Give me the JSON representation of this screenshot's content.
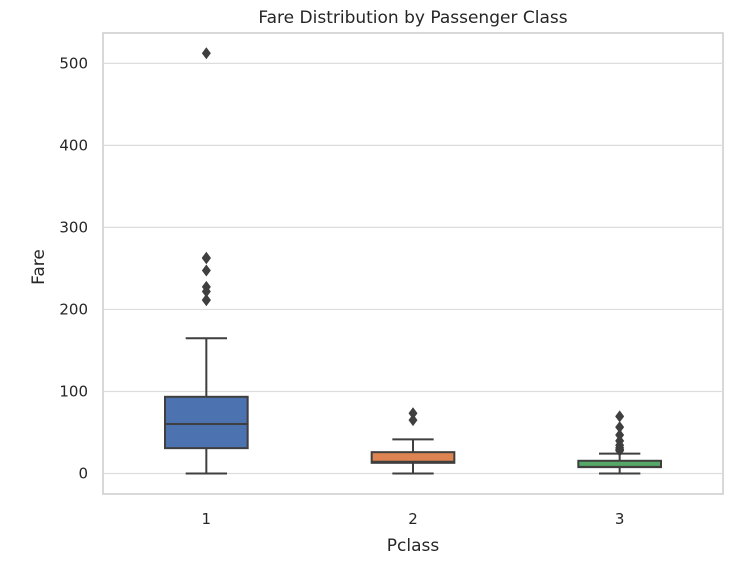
{
  "chart_data": {
    "type": "box",
    "title": "Fare Distribution by Passenger Class",
    "xlabel": "Pclass",
    "ylabel": "Fare",
    "ylim": [
      -25,
      537
    ],
    "yticks": [
      0,
      100,
      200,
      300,
      400,
      500
    ],
    "grid": true,
    "categories": [
      "1",
      "2",
      "3"
    ],
    "colors": [
      "#4c72b0",
      "#dd8452",
      "#55a868"
    ],
    "boxes": [
      {
        "category": "1",
        "whisker_low": 0,
        "q1": 30.9,
        "median": 60.3,
        "q3": 93.5,
        "whisker_high": 164.9,
        "outliers": [
          211.3,
          211.5,
          221.8,
          227.5,
          247.5,
          262.4,
          263.0,
          512.3
        ]
      },
      {
        "category": "2",
        "whisker_low": 0,
        "q1": 13.0,
        "median": 14.3,
        "q3": 26.0,
        "whisker_high": 41.6,
        "outliers": [
          65.0,
          73.5
        ]
      },
      {
        "category": "3",
        "whisker_low": 0,
        "q1": 7.75,
        "median": 8.05,
        "q3": 15.5,
        "whisker_high": 24.2,
        "outliers": [
          27.9,
          29.1,
          31.3,
          34.4,
          39.7,
          46.9,
          56.5,
          69.6
        ]
      }
    ]
  }
}
